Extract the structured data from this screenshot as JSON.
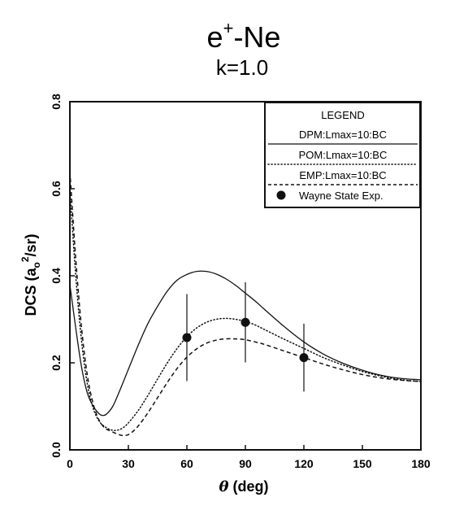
{
  "chart_data": {
    "type": "line",
    "title_main": "e",
    "title_sup": "+",
    "title_rest": "-Ne",
    "subtitle": "k=1.0",
    "xlabel_symbol": "θ",
    "xlabel_rest": " (deg)",
    "ylabel_prefix": "DCS (a",
    "ylabel_sub": "o",
    "ylabel_sup": "2",
    "ylabel_suffix": "/sr)",
    "xlim": [
      0,
      180
    ],
    "ylim": [
      0,
      0.8
    ],
    "xticks": [
      0,
      30,
      60,
      90,
      120,
      150,
      180
    ],
    "yticks": [
      0.0,
      0.2,
      0.4,
      0.6,
      0.8
    ],
    "xtick_labels": [
      "0",
      "30",
      "60",
      "90",
      "120",
      "150",
      "180"
    ],
    "ytick_labels": [
      "0.0",
      "0.2",
      "0.4",
      "0.6",
      "0.8"
    ],
    "legend": {
      "title": "LEGEND",
      "position": "top-right",
      "entries": [
        "DPM:Lmax=10:BC",
        "POM:Lmax=10:BC",
        "EMP:Lmax=10:BC",
        "Wayne State Exp."
      ]
    },
    "series": [
      {
        "name": "DPM:Lmax=10:BC",
        "style": "solid",
        "x": [
          0,
          3,
          6,
          9,
          12,
          15,
          17,
          19,
          22,
          25,
          30,
          35,
          40,
          45,
          50,
          55,
          60,
          65,
          70,
          75,
          80,
          85,
          90,
          95,
          100,
          110,
          120,
          130,
          140,
          150,
          160,
          170,
          180
        ],
        "y": [
          0.38,
          0.28,
          0.19,
          0.13,
          0.1,
          0.083,
          0.079,
          0.083,
          0.1,
          0.13,
          0.185,
          0.24,
          0.29,
          0.33,
          0.365,
          0.39,
          0.403,
          0.41,
          0.41,
          0.404,
          0.393,
          0.378,
          0.36,
          0.342,
          0.322,
          0.283,
          0.248,
          0.22,
          0.199,
          0.183,
          0.171,
          0.164,
          0.161
        ]
      },
      {
        "name": "POM:Lmax=10:BC",
        "style": "dotted",
        "x": [
          0,
          3,
          6,
          9,
          12,
          15,
          18,
          21,
          24,
          27,
          30,
          35,
          40,
          45,
          50,
          55,
          60,
          65,
          70,
          75,
          80,
          85,
          90,
          95,
          100,
          110,
          120,
          130,
          140,
          150,
          160,
          170,
          180
        ],
        "y": [
          0.6,
          0.4,
          0.25,
          0.15,
          0.095,
          0.066,
          0.053,
          0.046,
          0.045,
          0.05,
          0.062,
          0.09,
          0.125,
          0.163,
          0.2,
          0.233,
          0.26,
          0.28,
          0.293,
          0.3,
          0.302,
          0.3,
          0.295,
          0.287,
          0.276,
          0.254,
          0.233,
          0.212,
          0.195,
          0.18,
          0.169,
          0.161,
          0.157
        ]
      },
      {
        "name": "EMP:Lmax=10:BC",
        "style": "dashed",
        "x": [
          0,
          3,
          6,
          9,
          12,
          15,
          18,
          21,
          24,
          27,
          30,
          33,
          36,
          40,
          45,
          50,
          55,
          60,
          65,
          70,
          75,
          80,
          85,
          90,
          95,
          100,
          110,
          120,
          130,
          140,
          150,
          160,
          170,
          180
        ],
        "y": [
          0.64,
          0.44,
          0.28,
          0.17,
          0.105,
          0.068,
          0.05,
          0.043,
          0.037,
          0.033,
          0.035,
          0.045,
          0.06,
          0.085,
          0.12,
          0.155,
          0.187,
          0.213,
          0.232,
          0.245,
          0.252,
          0.255,
          0.255,
          0.253,
          0.248,
          0.242,
          0.227,
          0.212,
          0.197,
          0.184,
          0.173,
          0.165,
          0.16,
          0.157
        ]
      }
    ],
    "experiment": {
      "name": "Wayne State Exp.",
      "x": [
        60,
        90,
        120
      ],
      "y": [
        0.258,
        0.293,
        0.212
      ],
      "err": [
        0.1,
        0.092,
        0.078
      ]
    }
  }
}
